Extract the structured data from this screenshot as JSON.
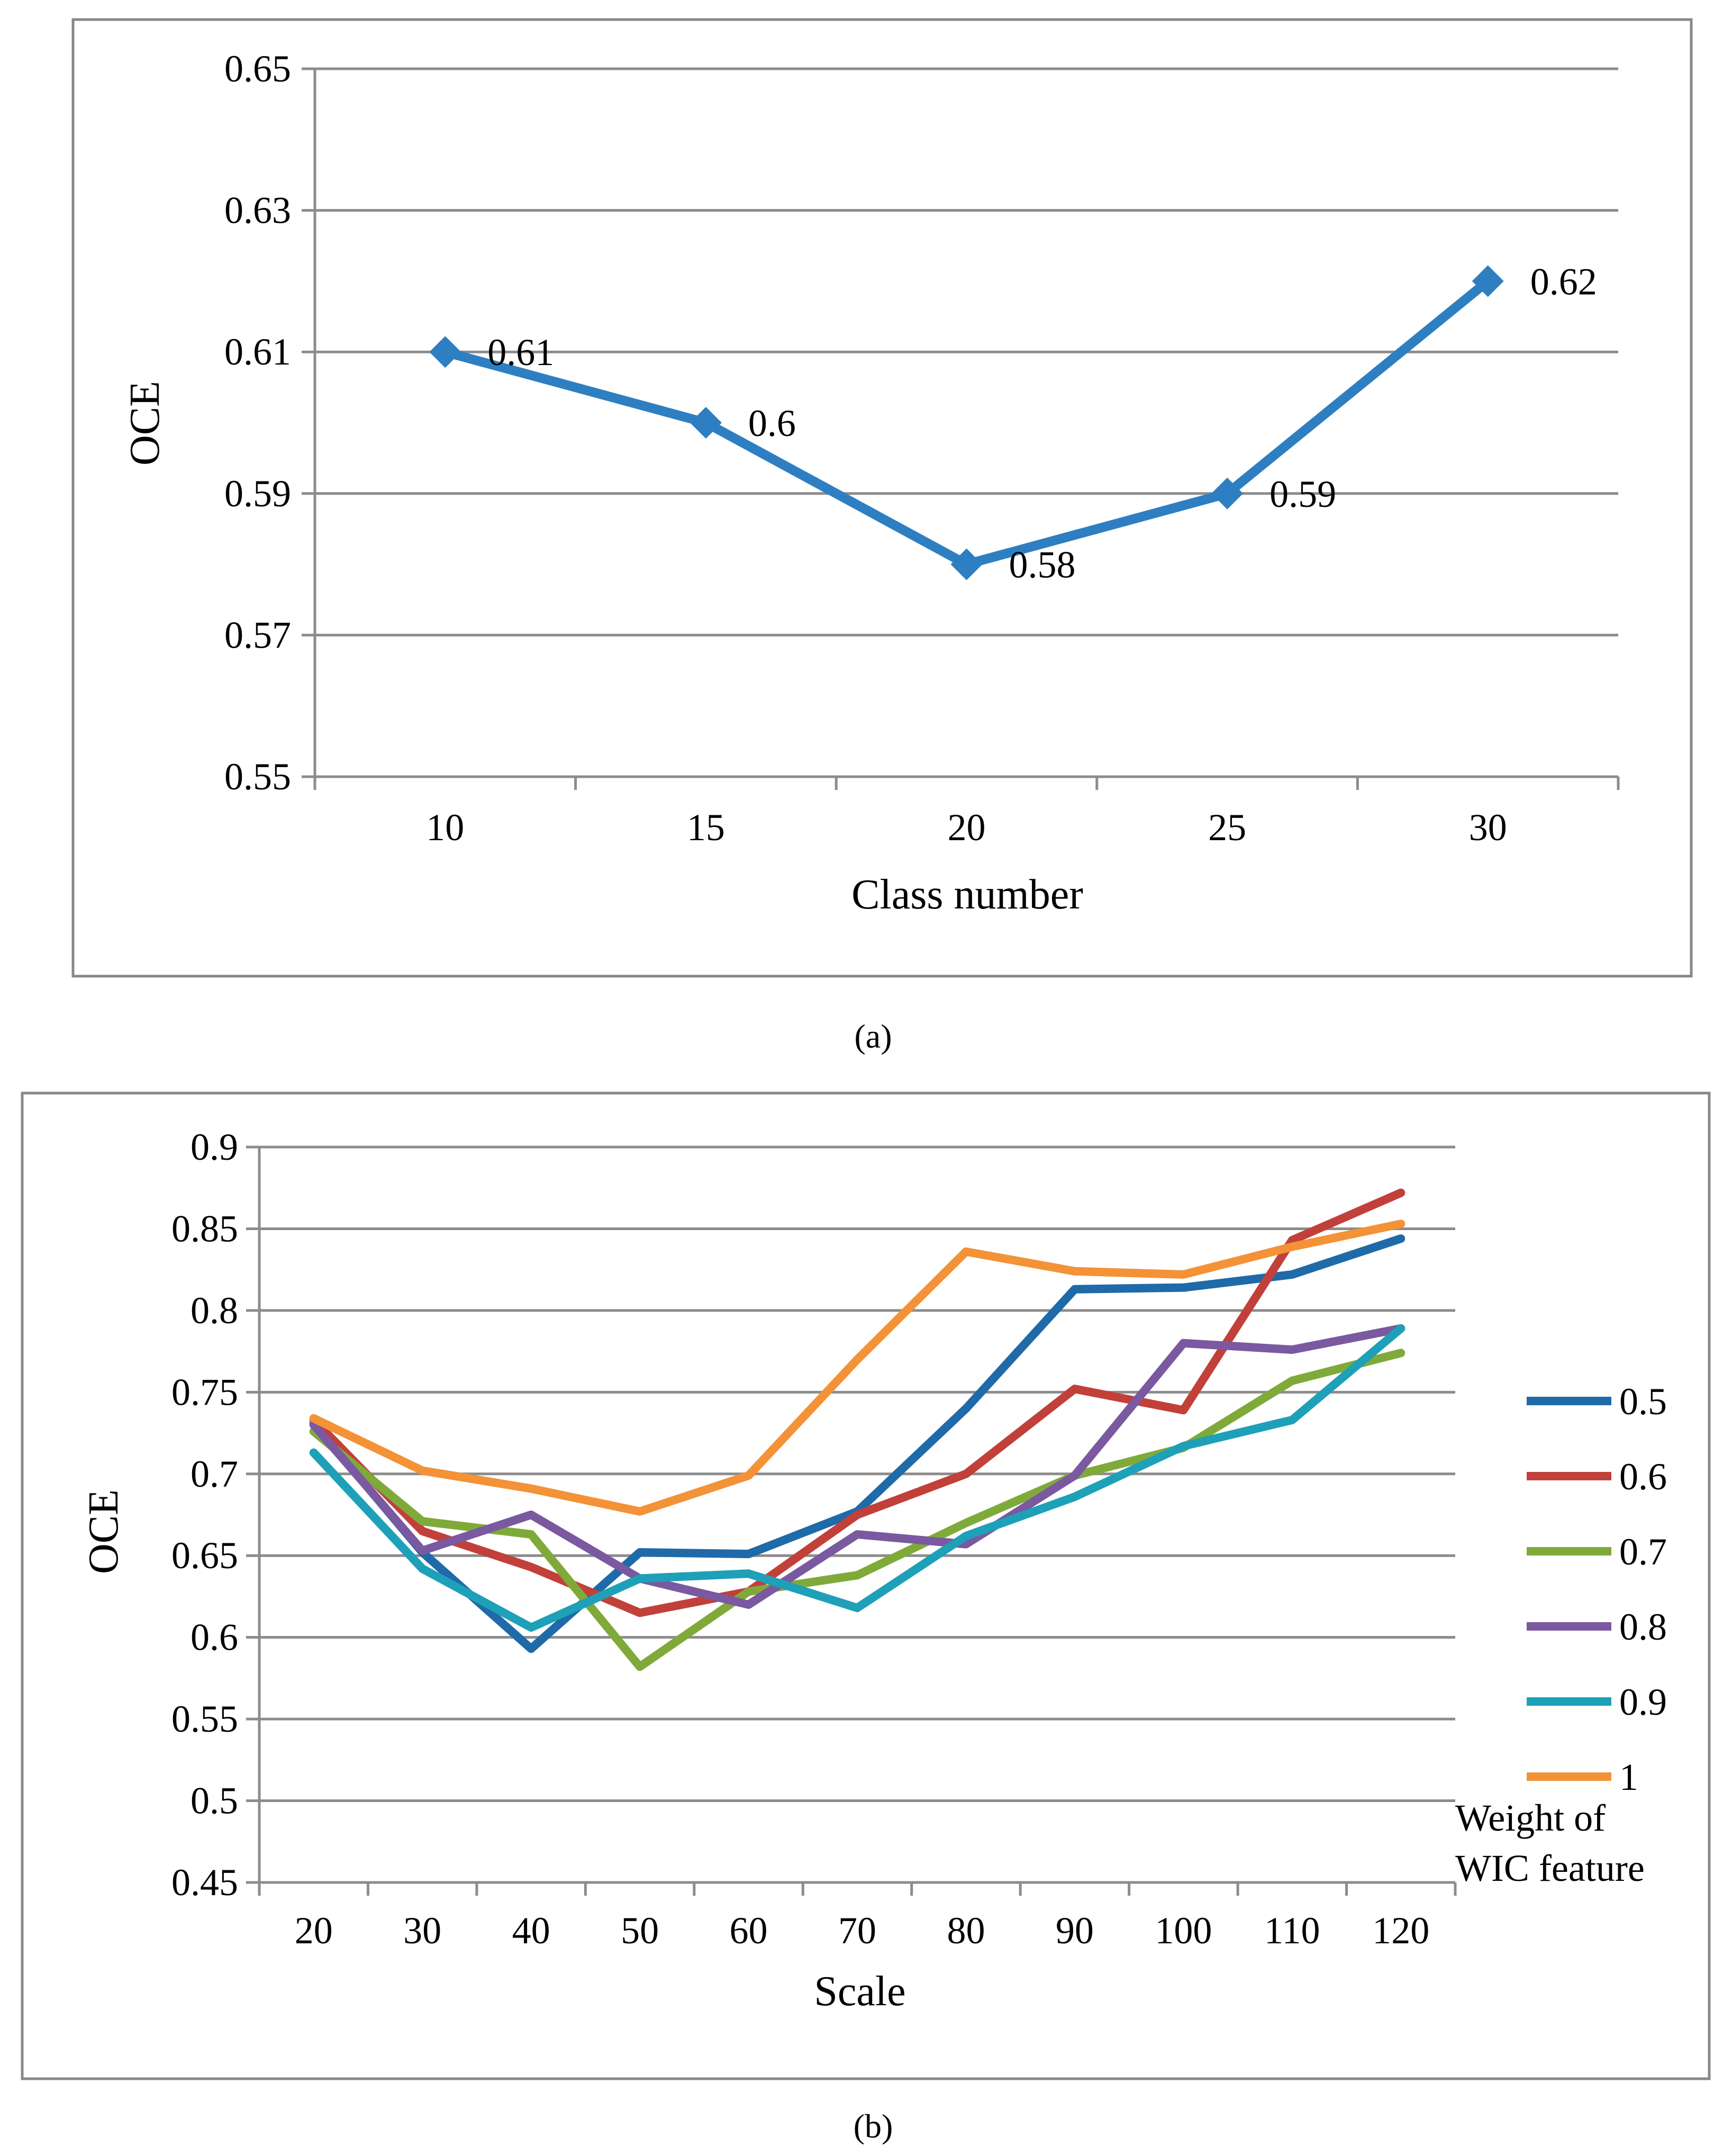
{
  "chart_data": [
    {
      "type": "line",
      "id": "a",
      "caption": "(a)",
      "title": "",
      "xlabel": "Class number",
      "ylabel": "OCE",
      "ylim": [
        0.55,
        0.65
      ],
      "yticks": [
        "0.55",
        "0.57",
        "0.59",
        "0.61",
        "0.63",
        "0.65"
      ],
      "categories": [
        "10",
        "15",
        "20",
        "25",
        "30"
      ],
      "series": [
        {
          "name": "OCE",
          "color": "#2e7fc1",
          "values": [
            0.61,
            0.6,
            0.58,
            0.59,
            0.62
          ]
        }
      ],
      "data_labels": [
        "0.61",
        "0.6",
        "0.58",
        "0.59",
        "0.62"
      ],
      "grid": true,
      "legend": "none"
    },
    {
      "type": "line",
      "id": "b",
      "caption": "(b)",
      "title": "",
      "xlabel": "Scale",
      "ylabel": "OCE",
      "ylim": [
        0.45,
        0.9
      ],
      "yticks": [
        "0.45",
        "0.5",
        "0.55",
        "0.6",
        "0.65",
        "0.7",
        "0.75",
        "0.8",
        "0.85",
        "0.9"
      ],
      "categories": [
        "20",
        "30",
        "40",
        "50",
        "60",
        "70",
        "80",
        "90",
        "100",
        "110",
        "120"
      ],
      "legend_title": [
        "Weight of",
        "WIC feature"
      ],
      "legend": "right",
      "grid": true,
      "series": [
        {
          "name": "0.5",
          "color": "#1f6aa8",
          "values": [
            0.731,
            0.652,
            0.593,
            0.652,
            0.651,
            0.677,
            0.74,
            0.813,
            0.814,
            0.822,
            0.844
          ]
        },
        {
          "name": "0.6",
          "color": "#c2403a",
          "values": [
            0.733,
            0.665,
            0.643,
            0.615,
            0.628,
            0.675,
            0.7,
            0.752,
            0.739,
            0.843,
            0.872
          ]
        },
        {
          "name": "0.7",
          "color": "#7faa3a",
          "values": [
            0.726,
            0.671,
            0.663,
            0.582,
            0.628,
            0.638,
            0.67,
            0.699,
            0.716,
            0.757,
            0.774
          ]
        },
        {
          "name": "0.8",
          "color": "#7a59a0",
          "values": [
            0.73,
            0.653,
            0.675,
            0.636,
            0.62,
            0.663,
            0.657,
            0.699,
            0.78,
            0.776,
            0.789
          ]
        },
        {
          "name": "0.9",
          "color": "#1ea0b8",
          "values": [
            0.713,
            0.642,
            0.606,
            0.636,
            0.639,
            0.618,
            0.662,
            0.686,
            0.717,
            0.733,
            0.789
          ]
        },
        {
          "name": "1",
          "color": "#f39237",
          "values": [
            0.734,
            0.702,
            0.691,
            0.677,
            0.699,
            0.77,
            0.836,
            0.824,
            0.822,
            0.839,
            0.853
          ]
        }
      ]
    }
  ]
}
